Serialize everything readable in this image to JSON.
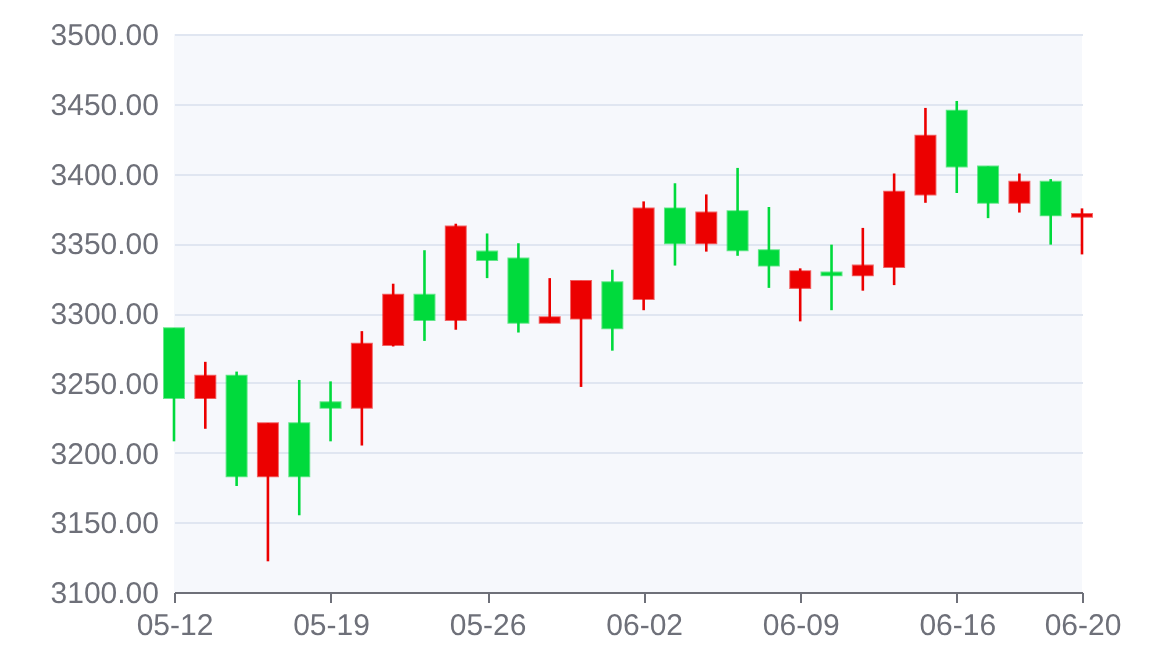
{
  "chart_data": {
    "type": "candlestick",
    "categories": [
      "05-12",
      null,
      null,
      null,
      null,
      "05-19",
      null,
      null,
      null,
      null,
      "05-26",
      null,
      null,
      null,
      null,
      "06-02",
      null,
      null,
      null,
      null,
      "06-09",
      null,
      null,
      null,
      null,
      "06-16",
      null,
      null,
      null,
      "06-20"
    ],
    "ohlc": [
      [
        3289,
        3289,
        3208,
        3239
      ],
      [
        3239,
        3265,
        3217,
        3255
      ],
      [
        3255,
        3258,
        3176,
        3183
      ],
      [
        3183,
        3221,
        3122,
        3221
      ],
      [
        3221,
        3252,
        3155,
        3183
      ],
      [
        3236,
        3251,
        3208,
        3232
      ],
      [
        3232,
        3287,
        3205,
        3278
      ],
      [
        3277,
        3321,
        3276,
        3313
      ],
      [
        3313,
        3345,
        3280,
        3295
      ],
      [
        3295,
        3364,
        3288,
        3362
      ],
      [
        3344,
        3357,
        3325,
        3338
      ],
      [
        3339,
        3350,
        3286,
        3293
      ],
      [
        3293,
        3325,
        3293,
        3297
      ],
      [
        3296,
        3323,
        3247,
        3323
      ],
      [
        3322,
        3331,
        3273,
        3289
      ],
      [
        3310,
        3380,
        3302,
        3375
      ],
      [
        3375,
        3393,
        3334,
        3350
      ],
      [
        3350,
        3385,
        3344,
        3372
      ],
      [
        3373,
        3404,
        3341,
        3345
      ],
      [
        3345,
        3376,
        3318,
        3334
      ],
      [
        3318,
        3332,
        3294,
        3330
      ],
      [
        3329,
        3349,
        3302,
        3327
      ],
      [
        3327,
        3361,
        3316,
        3334
      ],
      [
        3333,
        3400,
        3320,
        3387
      ],
      [
        3385,
        3447,
        3379,
        3427
      ],
      [
        3445,
        3452,
        3386,
        3405
      ],
      [
        3405,
        3405,
        3368,
        3379
      ],
      [
        3379,
        3400,
        3372,
        3394
      ],
      [
        3394,
        3396,
        3349,
        3370
      ],
      [
        3369,
        3375,
        3342,
        3371
      ]
    ],
    "colors": [
      "#00da3c",
      "#ec0000",
      "#00da3c",
      "#ec0000",
      "#00da3c",
      "#00da3c",
      "#ec0000",
      "#ec0000",
      "#00da3c",
      "#ec0000",
      "#00da3c",
      "#00da3c",
      "#ec0000",
      "#ec0000",
      "#00da3c",
      "#ec0000",
      "#00da3c",
      "#ec0000",
      "#00da3c",
      "#00da3c",
      "#ec0000",
      "#00da3c",
      "#ec0000",
      "#ec0000",
      "#ec0000",
      "#00da3c",
      "#00da3c",
      "#ec0000",
      "#00da3c",
      "#ec0000"
    ],
    "ylim": [
      3100,
      3500
    ],
    "yticks": [
      {
        "value": 3100,
        "label": "3100.00"
      },
      {
        "value": 3150,
        "label": "3150.00"
      },
      {
        "value": 3200,
        "label": "3200.00"
      },
      {
        "value": 3250,
        "label": "3250.00"
      },
      {
        "value": 3300,
        "label": "3300.00"
      },
      {
        "value": 3350,
        "label": "3350.00"
      },
      {
        "value": 3400,
        "label": "3400.00"
      },
      {
        "value": 3450,
        "label": "3450.00"
      },
      {
        "value": 3500,
        "label": "3500.00"
      }
    ],
    "grid": "y"
  }
}
